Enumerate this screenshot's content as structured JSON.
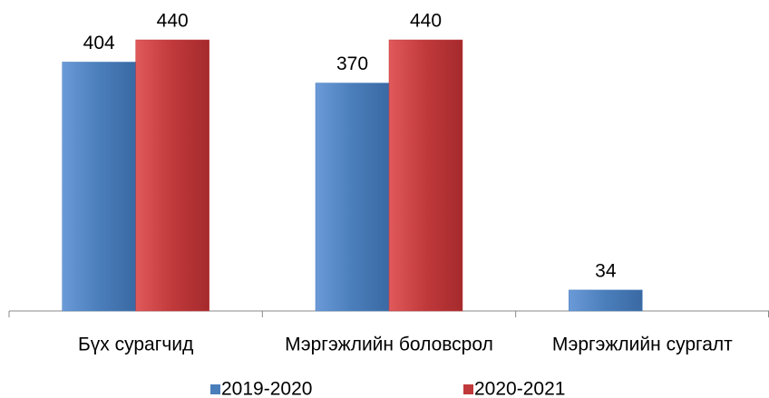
{
  "chart_data": {
    "type": "bar",
    "categories": [
      "Бүх сурагчид",
      "Мэргэжлийн боловсрол",
      "Мэргэжлийн сургалт"
    ],
    "series": [
      {
        "name": "2019-2020",
        "color": "#4a7ebb",
        "values": [
          404,
          370,
          34
        ]
      },
      {
        "name": "2020-2021",
        "color": "#c0393b",
        "values": [
          440,
          440,
          null
        ]
      }
    ]
  }
}
